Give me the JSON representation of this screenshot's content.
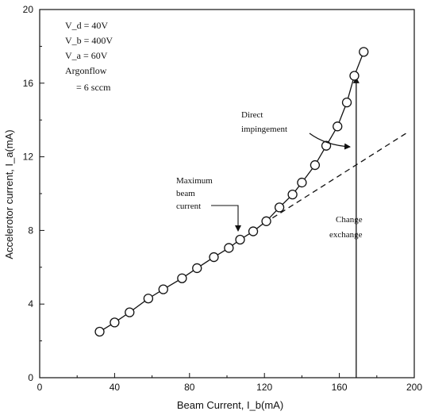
{
  "chart_data": {
    "type": "scatter",
    "xlabel": "Beam Current, I_b(mA)",
    "ylabel": "Accelerotor current, I_a(mA)",
    "xlim": [
      0,
      200
    ],
    "ylim": [
      0,
      20
    ],
    "x_ticks": [
      "0",
      "40",
      "80",
      "120",
      "160",
      "200"
    ],
    "y_ticks": [
      "0",
      "4",
      "8",
      "12",
      "16",
      "20"
    ],
    "grid": false,
    "series": [
      {
        "points": [
          [
            32,
            2.5
          ],
          [
            40,
            3.0
          ],
          [
            48,
            3.55
          ],
          [
            58,
            4.3
          ],
          [
            66,
            4.8
          ],
          [
            76,
            5.4
          ],
          [
            84,
            5.95
          ],
          [
            93,
            6.55
          ],
          [
            101,
            7.05
          ],
          [
            107,
            7.5
          ],
          [
            114,
            7.95
          ],
          [
            121,
            8.5
          ],
          [
            128,
            9.25
          ],
          [
            135,
            9.95
          ],
          [
            140,
            10.6
          ],
          [
            147,
            11.55
          ],
          [
            153,
            12.6
          ],
          [
            159,
            13.65
          ],
          [
            164,
            14.95
          ],
          [
            168,
            16.4
          ],
          [
            173,
            17.7
          ]
        ]
      }
    ],
    "extrapolation_line": [
      [
        120,
        8.4
      ],
      [
        196,
        13.3
      ]
    ],
    "change_exchange_line": {
      "x": 169,
      "y_from": 0,
      "y_to": 16.3
    },
    "parameters": [
      "V_d = 40V",
      "V_b = 400V",
      "V_a = 60V",
      "Argonflow",
      "= 6 sccm"
    ],
    "annotations": {
      "direct": [
        "Direct",
        "impingement"
      ],
      "max_beam": [
        "Maximum",
        "beam",
        "current"
      ],
      "change": [
        "Change",
        "exchange"
      ]
    }
  }
}
